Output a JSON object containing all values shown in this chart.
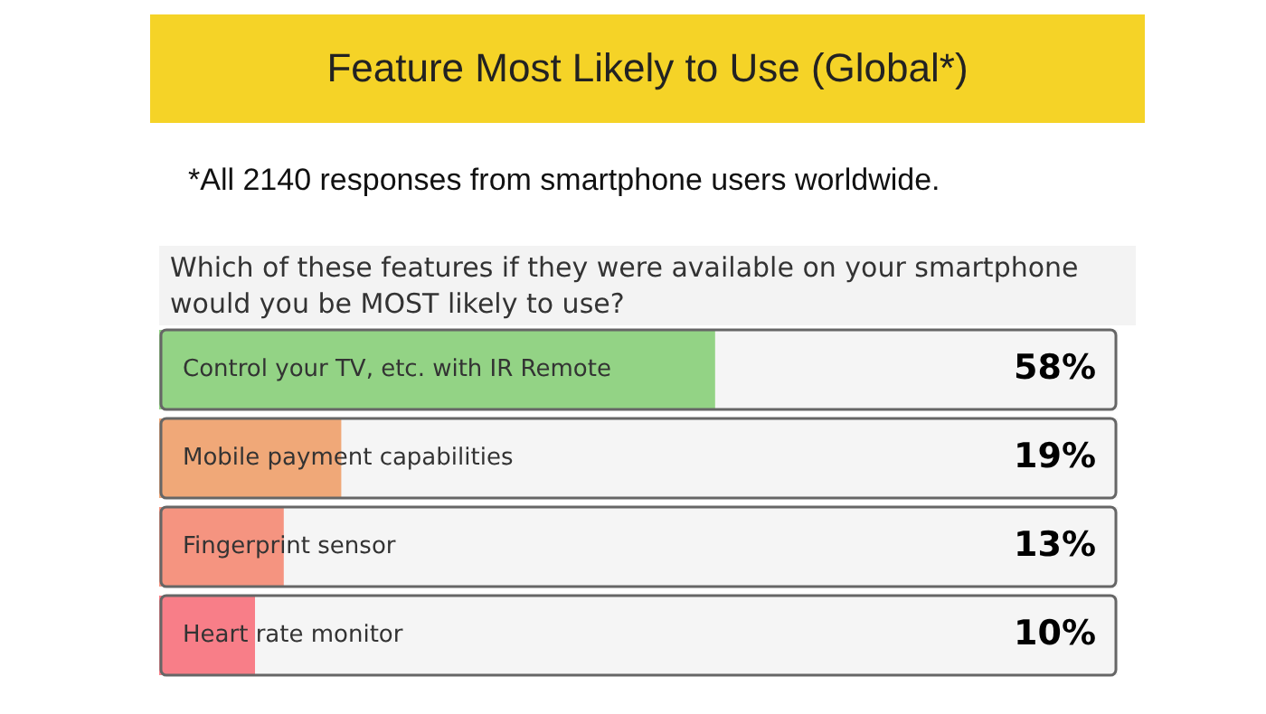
{
  "chart_data": {
    "type": "bar",
    "orientation": "horizontal",
    "title": "Feature Most Likely to Use (Global*)",
    "subtitle": "Which of these features if they were available on your smartphone would you be MOST likely to use?",
    "annotations": [
      "*All 2140 responses from smartphone users worldwide."
    ],
    "categories": [
      "Control your TV, etc. with IR Remote",
      "Mobile payment capabilities",
      "Fingerprint sensor",
      "Heart rate monitor"
    ],
    "values": [
      58,
      19,
      13,
      10
    ],
    "colors": [
      "#93d385",
      "#f0a878",
      "#f59480",
      "#f87e88"
    ],
    "value_labels": [
      "58%",
      "19%",
      "13%",
      "10%"
    ],
    "xlim": [
      0,
      100
    ],
    "legend": false
  }
}
